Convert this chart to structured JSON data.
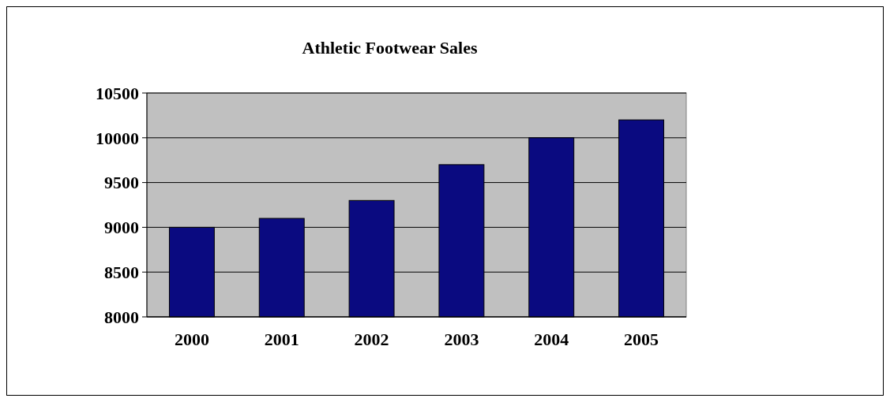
{
  "chart_data": {
    "type": "bar",
    "title": "Athletic Footwear Sales",
    "categories": [
      "2000",
      "2001",
      "2002",
      "2003",
      "2004",
      "2005"
    ],
    "values": [
      9000,
      9100,
      9300,
      9700,
      10000,
      10200
    ],
    "color": "#0a0a80",
    "ylim": [
      8000,
      10500
    ],
    "yticks": [
      8000,
      8500,
      9000,
      9500,
      10000,
      10500
    ],
    "grid": "y"
  }
}
